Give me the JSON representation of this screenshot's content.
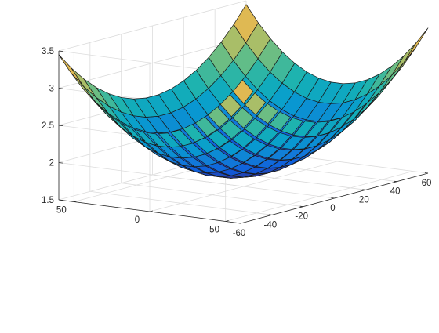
{
  "chart_data": {
    "type": "surface",
    "title": "",
    "xlabel": "",
    "ylabel": "",
    "zlabel": "",
    "xlim": [
      -60,
      60
    ],
    "ylim": [
      -60,
      60
    ],
    "zlim": [
      1.5,
      3.5
    ],
    "grid": true,
    "colormap": "parula",
    "x": [
      -60,
      -52,
      -44,
      -36,
      -28,
      -20,
      -12,
      -4,
      4,
      12,
      20,
      28,
      36,
      44,
      52,
      60
    ],
    "y": [
      -60,
      -52,
      -44,
      -36,
      -28,
      -20,
      -12,
      -4,
      4,
      12,
      20,
      28,
      36,
      44,
      52,
      60
    ],
    "z_formula": "z = 1.65 + 0.00025 * (x^2 + y^2)",
    "x_ticks": [
      {
        "value": -60,
        "label": "-60"
      },
      {
        "value": -40,
        "label": "-40"
      },
      {
        "value": -20,
        "label": "-20"
      },
      {
        "value": 0,
        "label": "0"
      },
      {
        "value": 20,
        "label": "20"
      },
      {
        "value": 40,
        "label": "40"
      },
      {
        "value": 60,
        "label": "60"
      }
    ],
    "y_ticks": [
      {
        "value": -50,
        "label": "-50"
      },
      {
        "value": 0,
        "label": "0"
      },
      {
        "value": 50,
        "label": "50"
      }
    ],
    "z_ticks": [
      {
        "value": 1.5,
        "label": "1.5"
      },
      {
        "value": 2,
        "label": "2"
      },
      {
        "value": 2.5,
        "label": "2.5"
      },
      {
        "value": 3,
        "label": "3"
      },
      {
        "value": 3.5,
        "label": "3.5"
      }
    ]
  }
}
